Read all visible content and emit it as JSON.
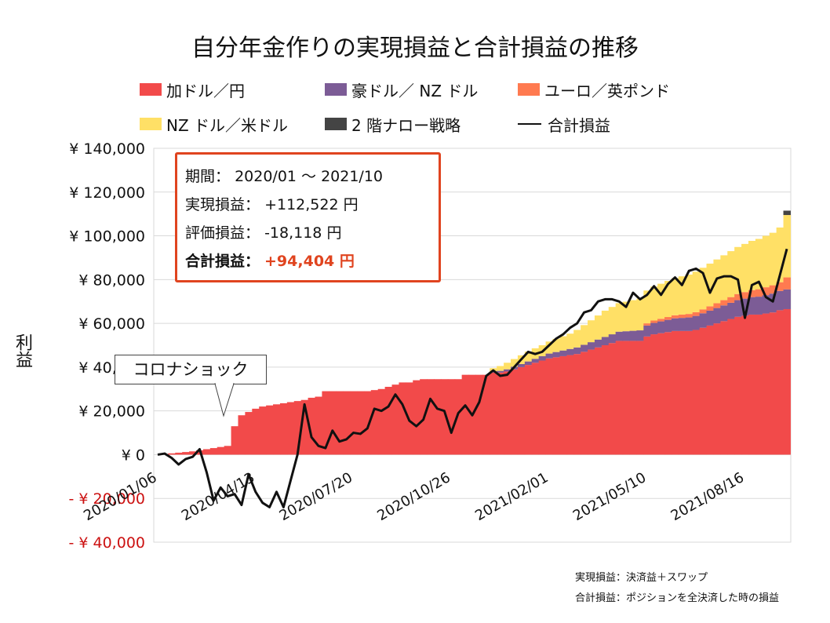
{
  "chart_data": {
    "type": "bar",
    "stacked": true,
    "title": "自分年金作りの実現損益と合計損益の推移",
    "ylabel": "利益",
    "ylim": [
      -40000,
      140000
    ],
    "yticks": [
      {
        "value": 140000,
        "label": "¥ 140,000"
      },
      {
        "value": 120000,
        "label": "¥ 120,000"
      },
      {
        "value": 100000,
        "label": "¥ 100,000"
      },
      {
        "value": 80000,
        "label": "¥ 80,000"
      },
      {
        "value": 60000,
        "label": "¥ 60,000"
      },
      {
        "value": 40000,
        "label": "¥ 40,000"
      },
      {
        "value": 20000,
        "label": "¥ 20,000"
      },
      {
        "value": 0,
        "label": "¥ 0"
      },
      {
        "value": -20000,
        "label": "- ¥ 20,000"
      },
      {
        "value": -40000,
        "label": "- ¥ 40,000"
      }
    ],
    "xtick_labels": [
      {
        "index": 0,
        "label": "2020/01/06"
      },
      {
        "index": 14,
        "label": "2020/04/13"
      },
      {
        "index": 28,
        "label": "2020/07/20"
      },
      {
        "index": 42,
        "label": "2020/10/26"
      },
      {
        "index": 56,
        "label": "2021/02/01"
      },
      {
        "index": 70,
        "label": "2021/05/10"
      },
      {
        "index": 84,
        "label": "2021/08/16"
      }
    ],
    "grid": true,
    "legend_position": "top",
    "series": [
      {
        "name": "加ドル／円",
        "color": "#f24a4a",
        "values": [
          0,
          300,
          600,
          900,
          1200,
          1500,
          2000,
          2500,
          3000,
          3500,
          4000,
          13000,
          18000,
          19500,
          21000,
          22000,
          22500,
          23000,
          23500,
          24000,
          24500,
          25000,
          26000,
          26500,
          29000,
          29000,
          29000,
          29000,
          29000,
          29000,
          29000,
          29500,
          30000,
          31000,
          32000,
          33000,
          33000,
          34000,
          34500,
          34500,
          34500,
          34500,
          34500,
          34500,
          36500,
          36500,
          36500,
          36500,
          37500,
          37500,
          38000,
          39000,
          40000,
          41000,
          42000,
          43000,
          44000,
          44500,
          45000,
          45500,
          46000,
          47000,
          48000,
          49000,
          50000,
          51000,
          52000,
          52000,
          52000,
          52000,
          54000,
          55000,
          55500,
          56000,
          56500,
          56500,
          56500,
          57000,
          58000,
          59000,
          60000,
          61000,
          62000,
          63000,
          63500,
          64000,
          64000,
          64500,
          65000,
          66000,
          66500
        ]
      },
      {
        "name": "豪ドル／ NZ ドル",
        "color": "#7c5c96",
        "values": [
          0,
          0,
          0,
          0,
          0,
          0,
          0,
          0,
          0,
          0,
          0,
          0,
          0,
          0,
          0,
          0,
          0,
          0,
          0,
          0,
          0,
          0,
          0,
          0,
          0,
          0,
          0,
          0,
          0,
          0,
          0,
          0,
          0,
          0,
          0,
          0,
          0,
          0,
          0,
          0,
          0,
          0,
          0,
          0,
          0,
          0,
          0,
          0,
          500,
          800,
          1000,
          1200,
          1400,
          1600,
          1800,
          2000,
          2200,
          2400,
          2600,
          2800,
          3000,
          3200,
          3400,
          3600,
          3800,
          4000,
          4200,
          4400,
          4600,
          4800,
          5000,
          5200,
          5400,
          5600,
          5800,
          6000,
          6200,
          6400,
          6600,
          6800,
          7000,
          7200,
          7400,
          7600,
          7800,
          8000,
          8200,
          8400,
          8600,
          8800,
          9000
        ]
      },
      {
        "name": "ユーロ／英ポンド",
        "color": "#ff7a50",
        "values": [
          0,
          0,
          0,
          0,
          0,
          0,
          0,
          0,
          0,
          0,
          0,
          0,
          0,
          0,
          0,
          0,
          0,
          0,
          0,
          0,
          0,
          0,
          0,
          0,
          0,
          0,
          0,
          0,
          0,
          0,
          0,
          0,
          0,
          0,
          0,
          0,
          0,
          0,
          0,
          0,
          0,
          0,
          0,
          0,
          0,
          0,
          0,
          0,
          0,
          0,
          0,
          0,
          0,
          0,
          0,
          0,
          0,
          0,
          0,
          0,
          0,
          0,
          0,
          0,
          0,
          0,
          0,
          0,
          0,
          0,
          1000,
          1100,
          1200,
          1300,
          1400,
          1500,
          1600,
          1700,
          1800,
          2000,
          2200,
          2400,
          2600,
          2800,
          3000,
          3200,
          3400,
          3600,
          3800,
          4000,
          5500
        ]
      },
      {
        "name": "NZ ドル／米ドル",
        "color": "#ffe066",
        "values": [
          0,
          0,
          0,
          0,
          0,
          0,
          0,
          0,
          0,
          0,
          0,
          0,
          0,
          0,
          0,
          0,
          0,
          0,
          0,
          0,
          0,
          0,
          0,
          0,
          0,
          0,
          0,
          0,
          0,
          0,
          0,
          0,
          0,
          0,
          0,
          0,
          0,
          0,
          0,
          0,
          0,
          0,
          0,
          0,
          0,
          0,
          0,
          0,
          1500,
          2200,
          3000,
          3500,
          4000,
          4500,
          4800,
          5000,
          5500,
          6000,
          6500,
          7000,
          8000,
          9000,
          10000,
          11000,
          12000,
          12500,
          13000,
          13500,
          14000,
          14500,
          15000,
          15500,
          16000,
          16500,
          17000,
          17500,
          18000,
          18500,
          19000,
          19500,
          20000,
          20500,
          21000,
          21500,
          22000,
          22500,
          23000,
          23500,
          24000,
          25000,
          28500
        ]
      },
      {
        "name": "2 階ナロー戦略",
        "color": "#444444",
        "values": [
          0,
          0,
          0,
          0,
          0,
          0,
          0,
          0,
          0,
          0,
          0,
          0,
          0,
          0,
          0,
          0,
          0,
          0,
          0,
          0,
          0,
          0,
          0,
          0,
          0,
          0,
          0,
          0,
          0,
          0,
          0,
          0,
          0,
          0,
          0,
          0,
          0,
          0,
          0,
          0,
          0,
          0,
          0,
          0,
          0,
          0,
          0,
          0,
          0,
          0,
          0,
          0,
          0,
          0,
          0,
          0,
          0,
          0,
          0,
          0,
          0,
          0,
          0,
          0,
          0,
          0,
          0,
          0,
          0,
          0,
          0,
          0,
          0,
          0,
          0,
          0,
          0,
          0,
          0,
          0,
          0,
          0,
          0,
          0,
          0,
          0,
          0,
          0,
          0,
          0,
          2000
        ]
      },
      {
        "name": "合計損益",
        "type": "line",
        "color": "#111111",
        "values": [
          0,
          500,
          -1500,
          -4500,
          -2000,
          -1000,
          2500,
          -8000,
          -21000,
          -15000,
          -19000,
          -18000,
          -23000,
          -9000,
          -17000,
          -22000,
          -24000,
          -17000,
          -24000,
          -12000,
          0,
          23000,
          8000,
          4000,
          3000,
          11000,
          6000,
          7000,
          10000,
          9500,
          12000,
          21000,
          20000,
          22000,
          27500,
          23000,
          15500,
          13000,
          16000,
          25500,
          21000,
          20000,
          10000,
          19000,
          22500,
          18000,
          24000,
          36000,
          38500,
          36000,
          36500,
          40000,
          43500,
          47000,
          46000,
          47000,
          50000,
          53000,
          55000,
          58000,
          60000,
          65000,
          66000,
          70000,
          71000,
          71000,
          70000,
          67500,
          74000,
          71000,
          73000,
          77000,
          73000,
          78000,
          81000,
          77500,
          84000,
          85000,
          83000,
          74000,
          80500,
          81500,
          81500,
          80000,
          62500,
          77500,
          79000,
          72000,
          70000,
          82000,
          94000
        ]
      }
    ]
  },
  "info_box": {
    "period_label": "期間：",
    "period_value": "2020/01 ～ 2021/10",
    "realized_label": "実現損益：",
    "realized_value": "+112,522 円",
    "unrealized_label": "評価損益：",
    "unrealized_value": "-18,118 円",
    "total_label": "合計損益：",
    "total_value": "+94,404 円"
  },
  "annotation": {
    "text": "コロナショック"
  },
  "notes": {
    "line1": "実現損益：決済益＋スワップ",
    "line2": "合計損益：ポジションを全決済した時の損益"
  },
  "colors": {
    "accent": "#e0441f",
    "negative_tick": "#cc1111",
    "grid": "#d9d9d9"
  }
}
